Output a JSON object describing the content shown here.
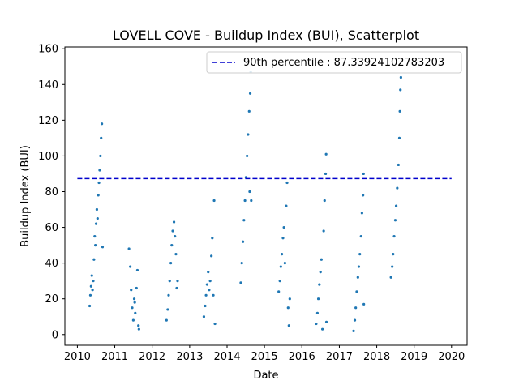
{
  "chart_data": {
    "type": "scatter",
    "title": "LOVELL COVE - Buildup Index (BUI), Scatterplot",
    "xlabel": "Date",
    "ylabel": "Buildup Index (BUI)",
    "xlim": [
      "2009-09-01",
      "2020-06-01"
    ],
    "ylim": [
      -6,
      161
    ],
    "x_ticks": [
      "2010",
      "2011",
      "2012",
      "2013",
      "2014",
      "2015",
      "2016",
      "2017",
      "2018",
      "2019",
      "2020"
    ],
    "y_ticks": [
      0,
      20,
      40,
      60,
      80,
      100,
      120,
      140,
      160
    ],
    "grid": false,
    "legend_position": "upper right",
    "colors": {
      "points": "#1f77b4",
      "threshold": "#0000cc"
    },
    "threshold": {
      "label": "90th percentile : 87.33924102783203",
      "value": 87.33924102783203,
      "x_start": "2010-01-01",
      "x_end": "2020-01-01"
    },
    "series": [
      {
        "points": [
          [
            "2010-05-01",
            16
          ],
          [
            "2010-05-08",
            22
          ],
          [
            "2010-05-15",
            27
          ],
          [
            "2010-05-22",
            33
          ],
          [
            "2010-05-29",
            25
          ],
          [
            "2010-06-05",
            30
          ],
          [
            "2010-06-12",
            42
          ],
          [
            "2010-06-19",
            55
          ],
          [
            "2010-06-26",
            50
          ],
          [
            "2010-07-03",
            62
          ],
          [
            "2010-07-10",
            70
          ],
          [
            "2010-07-17",
            65
          ],
          [
            "2010-07-24",
            78
          ],
          [
            "2010-07-31",
            85
          ],
          [
            "2010-08-07",
            92
          ],
          [
            "2010-08-14",
            100
          ],
          [
            "2010-08-21",
            110
          ],
          [
            "2010-08-28",
            118
          ],
          [
            "2010-09-04",
            49
          ],
          [
            "2011-05-20",
            48
          ],
          [
            "2011-06-01",
            38
          ],
          [
            "2011-06-10",
            25
          ],
          [
            "2011-06-20",
            15
          ],
          [
            "2011-07-01",
            8
          ],
          [
            "2011-07-10",
            20
          ],
          [
            "2011-07-20",
            12
          ],
          [
            "2011-08-01",
            26
          ],
          [
            "2011-08-10",
            36
          ],
          [
            "2011-08-20",
            5
          ],
          [
            "2011-08-25",
            3
          ],
          [
            "2011-07-15",
            18
          ],
          [
            "2012-05-20",
            8
          ],
          [
            "2012-06-01",
            14
          ],
          [
            "2012-06-10",
            22
          ],
          [
            "2012-06-20",
            30
          ],
          [
            "2012-07-01",
            40
          ],
          [
            "2012-07-10",
            50
          ],
          [
            "2012-07-20",
            58
          ],
          [
            "2012-08-01",
            63
          ],
          [
            "2012-08-10",
            55
          ],
          [
            "2012-08-20",
            45
          ],
          [
            "2012-08-28",
            26
          ],
          [
            "2012-09-05",
            30
          ],
          [
            "2013-05-20",
            10
          ],
          [
            "2013-06-01",
            16
          ],
          [
            "2013-06-10",
            22
          ],
          [
            "2013-06-20",
            28
          ],
          [
            "2013-07-01",
            35
          ],
          [
            "2013-07-10",
            25
          ],
          [
            "2013-07-20",
            30
          ],
          [
            "2013-08-01",
            44
          ],
          [
            "2013-08-10",
            54
          ],
          [
            "2013-08-20",
            22
          ],
          [
            "2013-08-28",
            75
          ],
          [
            "2013-09-05",
            6
          ],
          [
            "2014-05-15",
            29
          ],
          [
            "2014-05-25",
            40
          ],
          [
            "2014-06-05",
            52
          ],
          [
            "2014-06-15",
            64
          ],
          [
            "2014-06-25",
            75
          ],
          [
            "2014-07-05",
            88
          ],
          [
            "2014-07-15",
            100
          ],
          [
            "2014-07-25",
            112
          ],
          [
            "2014-08-05",
            125
          ],
          [
            "2014-08-15",
            135
          ],
          [
            "2014-08-20",
            147
          ],
          [
            "2014-08-25",
            75
          ],
          [
            "2014-08-10",
            80
          ],
          [
            "2015-05-20",
            24
          ],
          [
            "2015-06-01",
            30
          ],
          [
            "2015-06-10",
            38
          ],
          [
            "2015-06-20",
            45
          ],
          [
            "2015-07-01",
            54
          ],
          [
            "2015-07-10",
            60
          ],
          [
            "2015-07-20",
            40
          ],
          [
            "2015-08-01",
            72
          ],
          [
            "2015-08-10",
            85
          ],
          [
            "2015-08-20",
            15
          ],
          [
            "2015-08-28",
            5
          ],
          [
            "2015-09-05",
            20
          ],
          [
            "2016-05-20",
            6
          ],
          [
            "2016-06-01",
            12
          ],
          [
            "2016-06-10",
            20
          ],
          [
            "2016-06-20",
            28
          ],
          [
            "2016-07-01",
            35
          ],
          [
            "2016-07-10",
            42
          ],
          [
            "2016-07-20",
            3
          ],
          [
            "2016-08-01",
            58
          ],
          [
            "2016-08-10",
            75
          ],
          [
            "2016-08-20",
            90
          ],
          [
            "2016-08-25",
            101
          ],
          [
            "2016-08-28",
            7
          ],
          [
            "2017-05-20",
            2
          ],
          [
            "2017-06-01",
            8
          ],
          [
            "2017-06-10",
            15
          ],
          [
            "2017-06-20",
            24
          ],
          [
            "2017-07-01",
            32
          ],
          [
            "2017-07-10",
            38
          ],
          [
            "2017-07-20",
            45
          ],
          [
            "2017-08-01",
            55
          ],
          [
            "2017-08-10",
            68
          ],
          [
            "2017-08-20",
            78
          ],
          [
            "2017-08-25",
            90
          ],
          [
            "2017-08-28",
            17
          ],
          [
            "2018-05-20",
            32
          ],
          [
            "2018-06-01",
            38
          ],
          [
            "2018-06-10",
            45
          ],
          [
            "2018-06-20",
            55
          ],
          [
            "2018-07-01",
            64
          ],
          [
            "2018-07-10",
            72
          ],
          [
            "2018-07-20",
            82
          ],
          [
            "2018-08-01",
            95
          ],
          [
            "2018-08-10",
            110
          ],
          [
            "2018-08-15",
            125
          ],
          [
            "2018-08-20",
            137
          ],
          [
            "2018-08-25",
            144
          ]
        ]
      }
    ]
  }
}
